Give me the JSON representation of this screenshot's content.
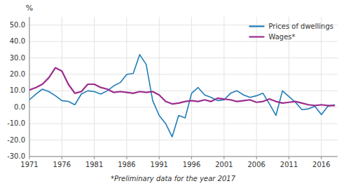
{
  "chart_data": {
    "type": "line",
    "ylabel": "%",
    "xlabel": "*Preliminary data for the year 2017",
    "x": [
      1971,
      1972,
      1973,
      1974,
      1975,
      1976,
      1977,
      1978,
      1979,
      1980,
      1981,
      1982,
      1983,
      1984,
      1985,
      1986,
      1987,
      1988,
      1989,
      1990,
      1991,
      1992,
      1993,
      1994,
      1995,
      1996,
      1997,
      1998,
      1999,
      2000,
      2001,
      2002,
      2003,
      2004,
      2005,
      2006,
      2007,
      2008,
      2009,
      2010,
      2011,
      2012,
      2013,
      2014,
      2015,
      2016,
      2017,
      2018
    ],
    "series": [
      {
        "name": "Prices of dwellings",
        "color": "#1f7db8",
        "values": [
          4.5,
          8.0,
          11.0,
          9.5,
          7.0,
          4.0,
          3.5,
          1.5,
          8.0,
          10.0,
          9.5,
          8.0,
          10.0,
          13.0,
          15.0,
          20.0,
          20.5,
          32.0,
          26.0,
          4.0,
          -5.0,
          -10.0,
          -18.0,
          -5.0,
          -6.5,
          8.5,
          12.0,
          7.5,
          6.0,
          4.0,
          4.5,
          8.5,
          10.0,
          7.5,
          6.0,
          7.0,
          8.5,
          2.0,
          -5.0,
          10.0,
          6.5,
          3.0,
          -1.5,
          -1.0,
          0.5,
          -4.5,
          0.5,
          1.5
        ]
      },
      {
        "name": "Wages*",
        "color": "#9b2d8e",
        "values": [
          10.5,
          12.0,
          14.0,
          18.0,
          24.0,
          22.0,
          14.0,
          8.5,
          9.5,
          14.0,
          14.0,
          12.0,
          11.0,
          9.0,
          9.5,
          9.0,
          8.5,
          9.5,
          9.0,
          9.5,
          7.5,
          3.5,
          2.0,
          2.5,
          3.5,
          4.0,
          3.5,
          4.5,
          3.5,
          5.5,
          5.0,
          4.5,
          3.5,
          4.0,
          4.5,
          3.0,
          3.5,
          5.0,
          3.5,
          2.5,
          3.0,
          3.5,
          2.5,
          1.5,
          1.0,
          1.5,
          1.0,
          1.0
        ]
      }
    ],
    "xlim": [
      1971,
      2018.5
    ],
    "xticks": [
      1971,
      1976,
      1981,
      1986,
      1991,
      1996,
      2001,
      2006,
      2011,
      2016
    ],
    "ylim": [
      -30,
      55
    ],
    "yticks": [
      {
        "value": -30,
        "label": "-30.0"
      },
      {
        "value": -20,
        "label": "-20.0"
      },
      {
        "value": -10,
        "label": "-10.0"
      },
      {
        "value": 0,
        "label": "0.0"
      },
      {
        "value": 10,
        "label": "10.0"
      },
      {
        "value": 20,
        "label": "20.0"
      },
      {
        "value": 30,
        "label": "30.0"
      },
      {
        "value": 40,
        "label": "40.0"
      },
      {
        "value": 50,
        "label": "50.0"
      }
    ],
    "grid": true,
    "legend": "upper right"
  }
}
